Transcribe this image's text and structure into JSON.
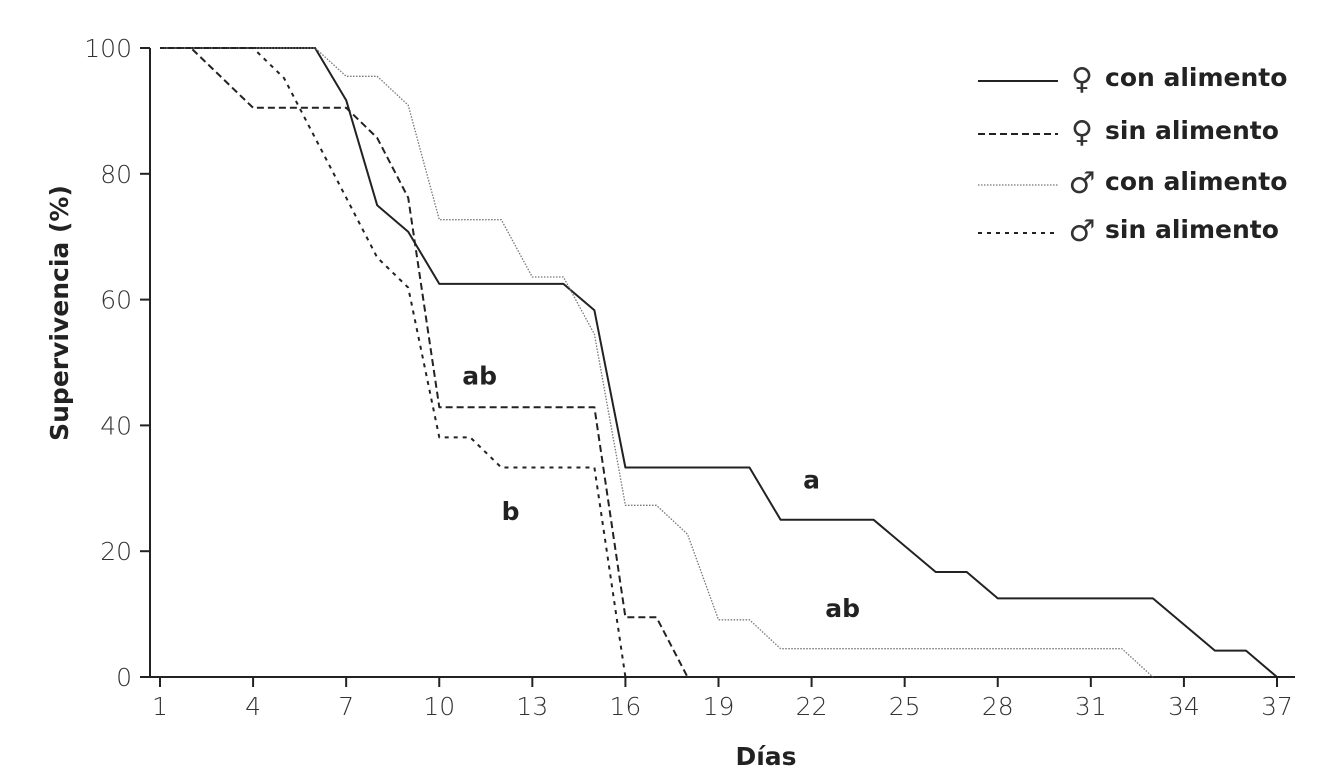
{
  "chart_data": {
    "type": "line",
    "title": "",
    "xlabel": "Días",
    "ylabel": "Supervivencia (%)",
    "xlim": [
      1,
      38
    ],
    "ylim": [
      0,
      100
    ],
    "xticks": [
      1,
      4,
      7,
      10,
      13,
      16,
      19,
      22,
      25,
      28,
      31,
      34,
      37
    ],
    "yticks": [
      0,
      20,
      40,
      60,
      80,
      100
    ],
    "grid": false,
    "legend_position": "top-right",
    "series": [
      {
        "name": "♀ con alimento",
        "symbol": "♀",
        "label": "con alimento",
        "style": "solid",
        "color": "#222222",
        "points": [
          [
            1,
            100
          ],
          [
            6,
            100
          ],
          [
            7,
            91.7
          ],
          [
            8,
            75
          ],
          [
            9,
            70.8
          ],
          [
            10,
            62.5
          ],
          [
            14,
            62.5
          ],
          [
            15,
            58.3
          ],
          [
            16,
            33.3
          ],
          [
            20,
            33.3
          ],
          [
            21,
            25
          ],
          [
            24,
            25
          ],
          [
            26,
            16.7
          ],
          [
            27,
            16.7
          ],
          [
            28,
            12.5
          ],
          [
            33,
            12.5
          ],
          [
            35,
            4.2
          ],
          [
            36,
            4.2
          ],
          [
            37,
            0
          ]
        ]
      },
      {
        "name": "♀ sin alimento",
        "symbol": "♀",
        "label": "sin alimento",
        "style": "dashed",
        "color": "#222222",
        "points": [
          [
            1,
            100
          ],
          [
            2,
            100
          ],
          [
            4,
            90.5
          ],
          [
            7,
            90.5
          ],
          [
            8,
            85.7
          ],
          [
            9,
            76.2
          ],
          [
            10,
            42.9
          ],
          [
            15,
            42.9
          ],
          [
            16,
            9.5
          ],
          [
            17,
            9.5
          ],
          [
            18,
            0
          ]
        ]
      },
      {
        "name": "♂ con alimento",
        "symbol": "♂",
        "label": "con alimento",
        "style": "dotted",
        "color": "#666666",
        "points": [
          [
            1,
            100
          ],
          [
            6,
            100
          ],
          [
            7,
            95.5
          ],
          [
            8,
            95.5
          ],
          [
            9,
            90.9
          ],
          [
            10,
            72.7
          ],
          [
            12,
            72.7
          ],
          [
            13,
            63.6
          ],
          [
            14,
            63.6
          ],
          [
            15,
            54.5
          ],
          [
            16,
            27.3
          ],
          [
            17,
            27.3
          ],
          [
            18,
            22.7
          ],
          [
            19,
            9.1
          ],
          [
            20,
            9.1
          ],
          [
            21,
            4.5
          ],
          [
            32,
            4.5
          ],
          [
            33,
            0
          ]
        ]
      },
      {
        "name": "♂ sin alimento",
        "symbol": "♂",
        "label": "sin alimento",
        "style": "shortdash",
        "color": "#222222",
        "points": [
          [
            1,
            100
          ],
          [
            4,
            100
          ],
          [
            5,
            95.2
          ],
          [
            6,
            85.7
          ],
          [
            7,
            76.2
          ],
          [
            8,
            66.7
          ],
          [
            9,
            61.9
          ],
          [
            10,
            38.1
          ],
          [
            11,
            38.1
          ],
          [
            12,
            33.3
          ],
          [
            15,
            33.3
          ],
          [
            16,
            0
          ]
        ]
      }
    ],
    "annotations": [
      {
        "text": "ab",
        "x": 11.3,
        "y": 46.5
      },
      {
        "text": "b",
        "x": 12.3,
        "y": 25
      },
      {
        "text": "a",
        "x": 22,
        "y": 30
      },
      {
        "text": "ab",
        "x": 23,
        "y": 9.5
      }
    ]
  }
}
